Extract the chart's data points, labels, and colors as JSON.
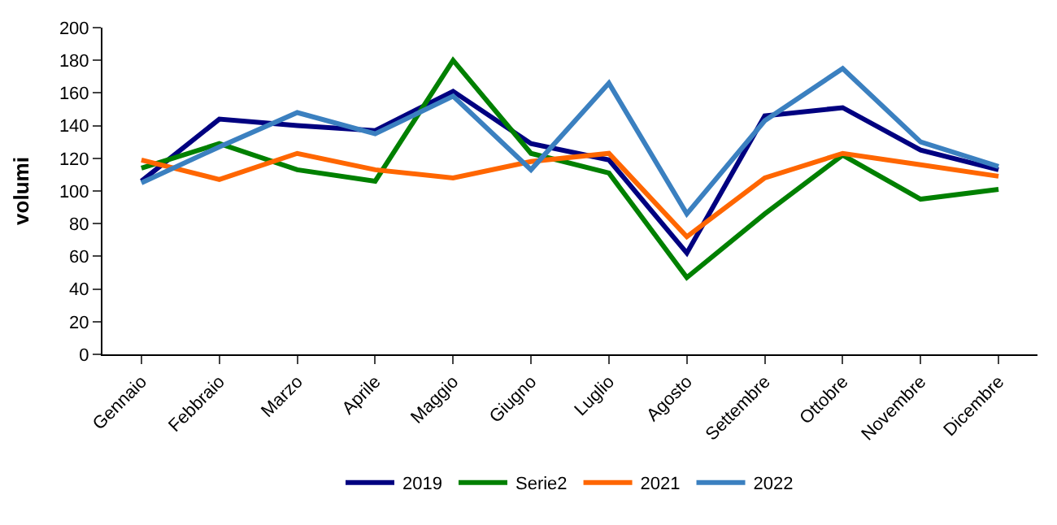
{
  "chart_data": {
    "type": "line",
    "ylabel": "volumi",
    "categories": [
      "Gennaio",
      "Febbraio",
      "Marzo",
      "Aprile",
      "Maggio",
      "Giugno",
      "Luglio",
      "Agosto",
      "Settembre",
      "Ottobre",
      "Novembre",
      "Dicembre"
    ],
    "series": [
      {
        "name": "2019",
        "color": "#000080",
        "values": [
          106,
          144,
          140,
          137,
          161,
          129,
          119,
          62,
          146,
          151,
          125,
          113
        ]
      },
      {
        "name": "Serie2",
        "color": "#008000",
        "values": [
          114,
          129,
          113,
          106,
          180,
          123,
          111,
          47,
          86,
          122,
          95,
          101
        ]
      },
      {
        "name": "2021",
        "color": "#ff6600",
        "values": [
          119,
          107,
          123,
          113,
          108,
          118,
          123,
          72,
          108,
          123,
          116,
          109
        ]
      },
      {
        "name": "2022",
        "color": "#3b80c0",
        "values": [
          105,
          127,
          148,
          135,
          158,
          113,
          166,
          86,
          143,
          175,
          130,
          115
        ]
      }
    ],
    "ylim": [
      0,
      200
    ],
    "yticks": [
      0,
      20,
      40,
      60,
      80,
      100,
      120,
      140,
      160,
      180,
      200
    ],
    "grid": false,
    "legend": "bottom",
    "marker": "none",
    "line_style": "solid"
  }
}
